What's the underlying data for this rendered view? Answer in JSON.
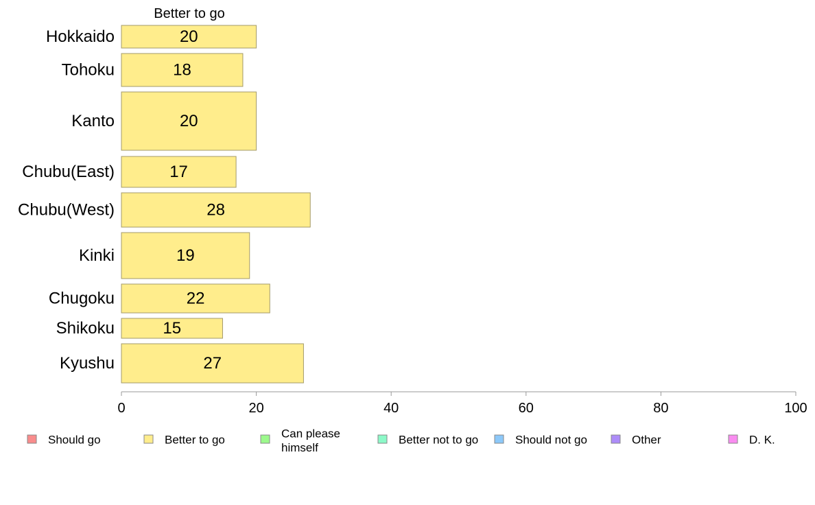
{
  "chart_data": {
    "type": "bar",
    "orientation": "horizontal",
    "stacked": true,
    "categories": [
      "Hokkaido",
      "Tohoku",
      "Kanto",
      "Chubu(East)",
      "Chubu(West)",
      "Kinki",
      "Chugoku",
      "Shikoku",
      "Kyushu"
    ],
    "series": [
      {
        "name": "Better to go",
        "values": [
          20,
          18,
          20,
          17,
          28,
          19,
          22,
          15,
          27
        ],
        "color": "#ffed8c"
      }
    ],
    "header": "Better to go",
    "xlim": [
      0,
      100
    ],
    "xticks": [
      "0",
      "20",
      "40",
      "60",
      "80",
      "100"
    ],
    "legend": {
      "placement": "bottom",
      "items": [
        {
          "label": "Should go",
          "color": "#f98c8c"
        },
        {
          "label": "Better to go",
          "color": "#ffed8c"
        },
        {
          "label": "Can please himself",
          "color": "#9cf98c"
        },
        {
          "label": "Better not to go",
          "color": "#8cf9c8"
        },
        {
          "label": "Should not go",
          "color": "#8cc8f9"
        },
        {
          "label": "Other",
          "color": "#ad8cf9"
        },
        {
          "label": "D. K.",
          "color": "#f98cf0"
        }
      ]
    }
  }
}
